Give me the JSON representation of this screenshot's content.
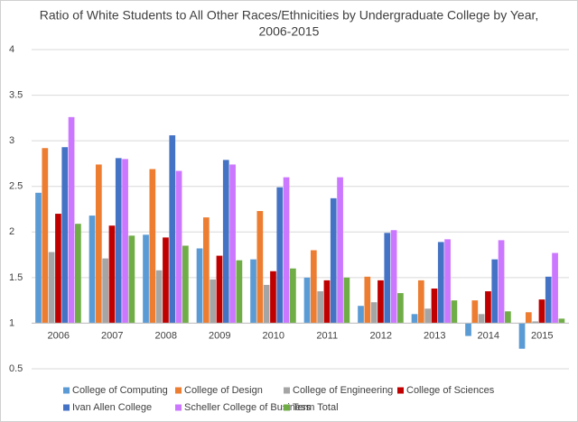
{
  "chart_data": {
    "type": "bar",
    "title": [
      "Ratio of White Students to All Other Races/Ethnicities by Undergraduate College by Year,",
      "2006-2015"
    ],
    "categories": [
      "2006",
      "2007",
      "2008",
      "2009",
      "2010",
      "2011",
      "2012",
      "2013",
      "2014",
      "2015"
    ],
    "series": [
      {
        "name": "College of Computing",
        "color": "#5b9bd5",
        "values": [
          2.43,
          2.18,
          1.97,
          1.82,
          1.7,
          1.5,
          1.19,
          1.1,
          0.86,
          0.72
        ]
      },
      {
        "name": "College of Design",
        "color": "#ed7d31",
        "values": [
          2.92,
          2.74,
          2.69,
          2.16,
          2.23,
          1.8,
          1.51,
          1.47,
          1.25,
          1.12
        ]
      },
      {
        "name": "College of Engineering",
        "color": "#a5a5a5",
        "values": [
          1.78,
          1.71,
          1.58,
          1.48,
          1.42,
          1.35,
          1.23,
          1.16,
          1.1,
          1.02
        ]
      },
      {
        "name": "College of Sciences",
        "color": "#c00000",
        "values": [
          2.2,
          2.07,
          1.94,
          1.74,
          1.57,
          1.47,
          1.47,
          1.38,
          1.35,
          1.26
        ]
      },
      {
        "name": "Ivan Allen College",
        "color": "#4472c4",
        "values": [
          2.93,
          2.81,
          3.06,
          2.79,
          2.49,
          2.37,
          1.99,
          1.89,
          1.7,
          1.51
        ]
      },
      {
        "name": "Scheller College of Business",
        "color": "#cc77ff",
        "values": [
          3.26,
          2.8,
          2.67,
          2.74,
          2.6,
          2.6,
          2.02,
          1.92,
          1.91,
          1.77
        ]
      },
      {
        "name": "Term Total",
        "color": "#70ad47",
        "values": [
          2.09,
          1.96,
          1.85,
          1.69,
          1.6,
          1.5,
          1.33,
          1.25,
          1.13,
          1.05
        ]
      }
    ],
    "ylim": [
      0.5,
      4
    ],
    "yticks": [
      0.5,
      1,
      1.5,
      2,
      2.5,
      3,
      3.5,
      4
    ],
    "x_axis_crosses": 1,
    "grid": true,
    "legend": "bottom"
  }
}
